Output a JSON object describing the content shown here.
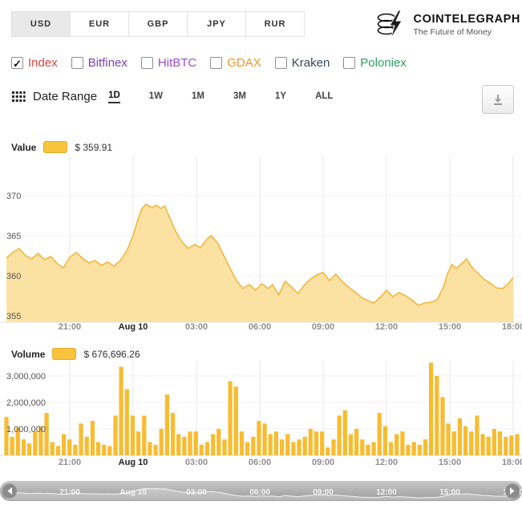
{
  "tabs": [
    {
      "label": "USD",
      "selected": true
    },
    {
      "label": "EUR",
      "selected": false
    },
    {
      "label": "GBP",
      "selected": false
    },
    {
      "label": "JPY",
      "selected": false
    },
    {
      "label": "RUR",
      "selected": false
    }
  ],
  "logo": {
    "name": "COINTELEGRAPH",
    "tagline": "The Future of Money"
  },
  "filters": {
    "items": [
      {
        "label": "Index",
        "checked": true,
        "check": "✓",
        "color": "#d9453c"
      },
      {
        "label": "Bitfinex",
        "checked": false,
        "check": "",
        "color": "#7a3dbe"
      },
      {
        "label": "HitBTC",
        "checked": false,
        "check": "",
        "color": "#a04ad6"
      },
      {
        "label": "GDAX",
        "checked": false,
        "check": "",
        "color": "#f7941d"
      },
      {
        "label": "Kraken",
        "checked": false,
        "check": "",
        "color": "#36455c"
      },
      {
        "label": "Poloniex",
        "checked": false,
        "check": "",
        "color": "#2f9e5f"
      }
    ]
  },
  "date_range": {
    "label": "Date Range",
    "options": [
      {
        "label": "1D",
        "selected": true
      },
      {
        "label": "1W",
        "selected": false
      },
      {
        "label": "1M",
        "selected": false
      },
      {
        "label": "3M",
        "selected": false
      },
      {
        "label": "1Y",
        "selected": false
      },
      {
        "label": "ALL",
        "selected": false
      }
    ]
  },
  "value_chart": {
    "title": "Value",
    "legend_value": "$ 359.91",
    "accent": "#f8c43c"
  },
  "volume_chart": {
    "title": "Volume",
    "legend_value": "$ 676,696.26",
    "accent": "#f8c43c"
  },
  "chart_data": [
    {
      "type": "area",
      "name": "btc-price-index-usd",
      "series_label": "Value",
      "current_value": "$ 359.91",
      "ylim": [
        354.2,
        374.9
      ],
      "yticks": [
        355,
        360,
        365,
        370
      ],
      "x_range_hours": [
        0,
        24
      ],
      "xticks": [
        {
          "h": 3,
          "label": "21:00"
        },
        {
          "h": 6,
          "label": "Aug 10"
        },
        {
          "h": 9,
          "label": "03:00"
        },
        {
          "h": 12,
          "label": "06:00"
        },
        {
          "h": 15,
          "label": "09:00"
        },
        {
          "h": 18,
          "label": "12:00"
        },
        {
          "h": 21,
          "label": "15:00"
        },
        {
          "h": 24,
          "label": "18:00"
        }
      ],
      "points": [
        [
          0,
          362.2
        ],
        [
          0.3,
          362.9
        ],
        [
          0.6,
          363.4
        ],
        [
          0.9,
          362.5
        ],
        [
          1.2,
          362.1
        ],
        [
          1.5,
          362.8
        ],
        [
          1.8,
          362.0
        ],
        [
          2.1,
          362.4
        ],
        [
          2.4,
          361.5
        ],
        [
          2.7,
          361.0
        ],
        [
          3.0,
          362.3
        ],
        [
          3.3,
          362.9
        ],
        [
          3.6,
          362.2
        ],
        [
          3.9,
          361.6
        ],
        [
          4.2,
          361.9
        ],
        [
          4.5,
          361.3
        ],
        [
          4.8,
          361.7
        ],
        [
          5.1,
          361.2
        ],
        [
          5.4,
          361.9
        ],
        [
          5.7,
          363.1
        ],
        [
          6.0,
          365.0
        ],
        [
          6.2,
          366.8
        ],
        [
          6.4,
          368.3
        ],
        [
          6.6,
          368.9
        ],
        [
          6.9,
          368.5
        ],
        [
          7.1,
          368.8
        ],
        [
          7.3,
          368.4
        ],
        [
          7.5,
          368.7
        ],
        [
          7.7,
          367.4
        ],
        [
          8.0,
          365.6
        ],
        [
          8.3,
          364.3
        ],
        [
          8.6,
          363.4
        ],
        [
          8.9,
          363.9
        ],
        [
          9.2,
          363.5
        ],
        [
          9.5,
          364.6
        ],
        [
          9.7,
          365.0
        ],
        [
          10.0,
          364.1
        ],
        [
          10.3,
          362.5
        ],
        [
          10.6,
          360.9
        ],
        [
          10.9,
          359.4
        ],
        [
          11.2,
          358.4
        ],
        [
          11.5,
          358.9
        ],
        [
          11.8,
          358.2
        ],
        [
          12.1,
          359.0
        ],
        [
          12.4,
          358.4
        ],
        [
          12.6,
          358.9
        ],
        [
          12.9,
          357.6
        ],
        [
          13.2,
          359.3
        ],
        [
          13.5,
          358.6
        ],
        [
          13.8,
          357.8
        ],
        [
          14.1,
          358.8
        ],
        [
          14.4,
          359.6
        ],
        [
          14.7,
          360.1
        ],
        [
          15.0,
          360.4
        ],
        [
          15.3,
          359.4
        ],
        [
          15.6,
          360.2
        ],
        [
          15.9,
          359.3
        ],
        [
          16.2,
          358.6
        ],
        [
          16.5,
          358.0
        ],
        [
          16.8,
          357.3
        ],
        [
          17.1,
          356.9
        ],
        [
          17.4,
          356.6
        ],
        [
          17.7,
          357.3
        ],
        [
          18.0,
          358.2
        ],
        [
          18.3,
          357.4
        ],
        [
          18.6,
          357.9
        ],
        [
          18.9,
          357.5
        ],
        [
          19.2,
          357.0
        ],
        [
          19.5,
          356.3
        ],
        [
          19.8,
          356.6
        ],
        [
          20.1,
          356.7
        ],
        [
          20.4,
          357.0
        ],
        [
          20.7,
          358.6
        ],
        [
          20.9,
          360.3
        ],
        [
          21.1,
          361.4
        ],
        [
          21.3,
          360.9
        ],
        [
          21.6,
          361.6
        ],
        [
          21.8,
          362.1
        ],
        [
          22.0,
          361.2
        ],
        [
          22.3,
          360.4
        ],
        [
          22.6,
          359.6
        ],
        [
          22.9,
          359.1
        ],
        [
          23.2,
          358.5
        ],
        [
          23.5,
          358.4
        ],
        [
          23.8,
          359.1
        ],
        [
          24.0,
          359.8
        ]
      ]
    },
    {
      "type": "bar",
      "name": "trade-volume-usd",
      "series_label": "Volume",
      "current_value": "$ 676,696.26",
      "ylim": [
        0,
        3600000
      ],
      "yticks": [
        {
          "v": 1000000,
          "label": "1,000,000"
        },
        {
          "v": 2000000,
          "label": "2,000,000"
        },
        {
          "v": 3000000,
          "label": "3,000,000"
        }
      ],
      "xticks": [
        {
          "h": 3,
          "label": "21:00"
        },
        {
          "h": 6,
          "label": "Aug 10"
        },
        {
          "h": 9,
          "label": "03:00"
        },
        {
          "h": 12,
          "label": "06:00"
        },
        {
          "h": 15,
          "label": "09:00"
        },
        {
          "h": 18,
          "label": "12:00"
        },
        {
          "h": 21,
          "label": "15:00"
        },
        {
          "h": 24,
          "label": "18:00"
        }
      ],
      "values": [
        1450000,
        700000,
        1050000,
        600000,
        450000,
        900000,
        1100000,
        1600000,
        500000,
        350000,
        800000,
        600000,
        400000,
        1200000,
        700000,
        1300000,
        500000,
        400000,
        350000,
        1500000,
        3350000,
        2500000,
        1500000,
        900000,
        1500000,
        500000,
        400000,
        1000000,
        2300000,
        1600000,
        800000,
        700000,
        900000,
        900000,
        400000,
        500000,
        800000,
        1000000,
        600000,
        2800000,
        2600000,
        900000,
        500000,
        700000,
        1300000,
        1200000,
        800000,
        900000,
        600000,
        800000,
        500000,
        600000,
        700000,
        1000000,
        900000,
        900000,
        300000,
        600000,
        1500000,
        1700000,
        800000,
        1000000,
        600000,
        400000,
        500000,
        1600000,
        1100000,
        500000,
        800000,
        900000,
        400000,
        500000,
        400000,
        600000,
        3500000,
        3000000,
        2200000,
        1200000,
        900000,
        1400000,
        1100000,
        900000,
        1500000,
        800000,
        700000,
        1000000,
        900000,
        700000,
        750000,
        800000
      ]
    }
  ]
}
